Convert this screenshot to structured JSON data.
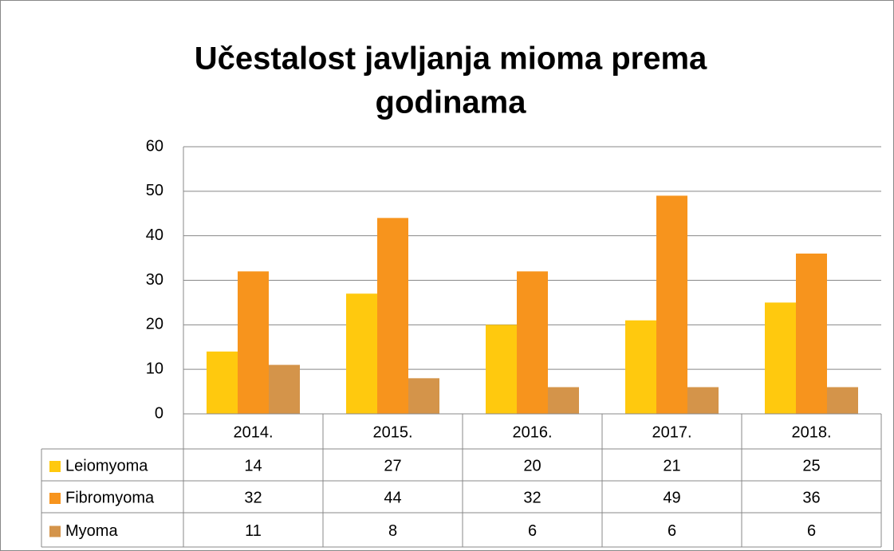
{
  "chart_data": {
    "type": "bar",
    "title": [
      "Učestalost javljanja mioma prema",
      "godinama"
    ],
    "categories": [
      "2014.",
      "2015.",
      "2016.",
      "2017.",
      "2018."
    ],
    "series": [
      {
        "name": "Leiomyoma",
        "color": "#ffc90e",
        "values": [
          14,
          27,
          20,
          21,
          25
        ]
      },
      {
        "name": "Fibromyoma",
        "color": "#f7941d",
        "values": [
          32,
          44,
          32,
          49,
          36
        ]
      },
      {
        "name": "Myoma",
        "color": "#d4944a",
        "values": [
          11,
          8,
          6,
          6,
          6
        ]
      }
    ],
    "ylim": [
      0,
      60
    ],
    "yticks": [
      0,
      10,
      20,
      30,
      40,
      50,
      60
    ],
    "grid": true,
    "data_table": true
  }
}
